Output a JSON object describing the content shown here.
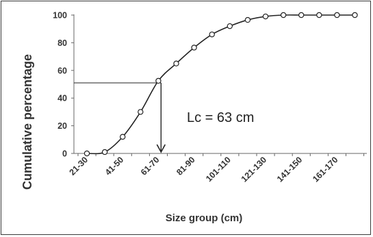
{
  "chart_data": {
    "type": "line",
    "title": "",
    "xlabel": "Size group (cm)",
    "ylabel": "Cumulative percentage",
    "categories_all": [
      "21-30",
      "31-40",
      "41-50",
      "51-60",
      "61-70",
      "71-80",
      "81-90",
      "91-100",
      "101-110",
      "111-120",
      "121-130",
      "131-140",
      "141-150",
      "151-160",
      "161-170",
      "171-180"
    ],
    "x_tick_labels": [
      "21-30",
      "41-50",
      "61-70",
      "81-90",
      "101-110",
      "121-130",
      "141-150",
      "161-170"
    ],
    "values": [
      0,
      1,
      12,
      30,
      52.5,
      65,
      76.5,
      86,
      92,
      96.5,
      99,
      100,
      100,
      100,
      100,
      100
    ],
    "ylim": [
      0,
      100
    ],
    "yticks": [
      0,
      20,
      40,
      60,
      80,
      100
    ],
    "grid": false,
    "legend": "none",
    "annotation": {
      "text": "Lc = 63 cm",
      "y_value": 51,
      "x_position": 4.5
    },
    "colors": {
      "line": "#222222",
      "axis": "#666666",
      "text": "#333333"
    }
  }
}
